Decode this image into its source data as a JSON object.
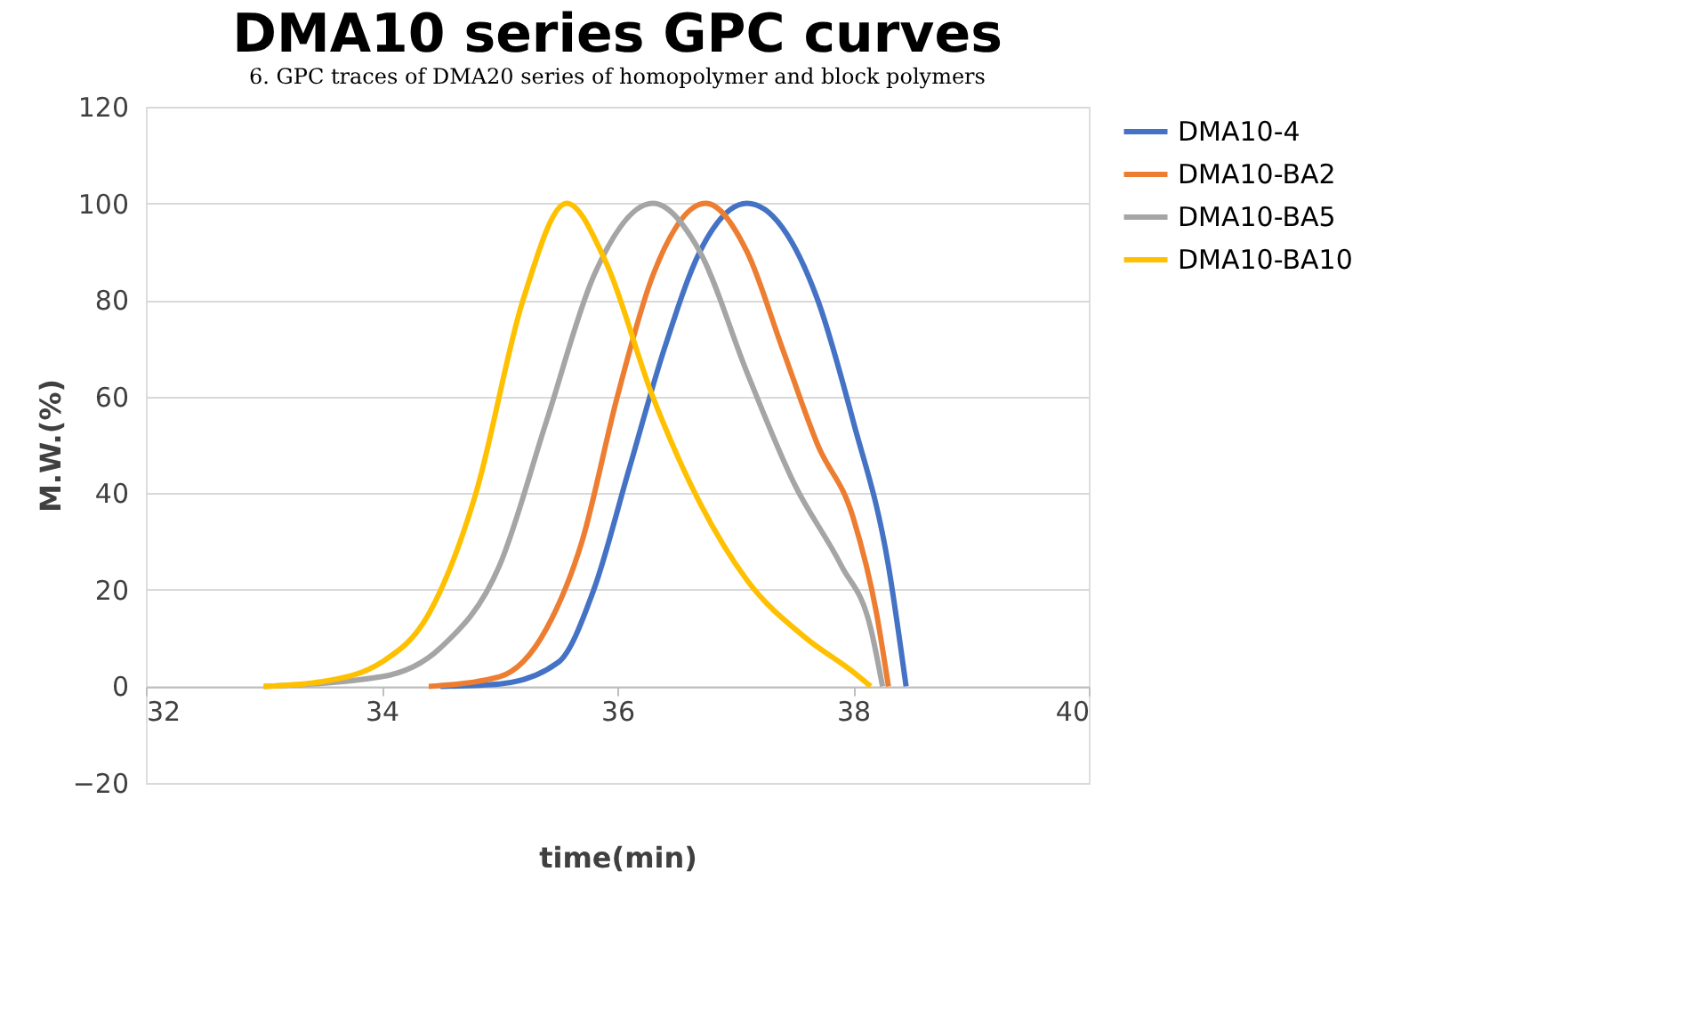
{
  "chart_data": {
    "type": "line",
    "title": "DMA10 series GPC curves",
    "xlabel": "time(min)",
    "ylabel": "M.W.(%)",
    "annotations": [
      "6. GPC traces of DMA20 series of homopolymer and block polymers"
    ],
    "xlim": [
      32,
      40
    ],
    "xticks": [
      32,
      34,
      36,
      38,
      40
    ],
    "ylim": [
      -20,
      120
    ],
    "yticks": [
      -20,
      0,
      20,
      40,
      60,
      80,
      100,
      120
    ],
    "grid": "y",
    "legend": "right",
    "marker": "none",
    "line_style": "solid",
    "series": [
      {
        "name": "DMA10-4",
        "color": "#4472c4",
        "x": [
          34.5,
          35,
          35.5,
          35.8,
          36.1,
          36.4,
          36.7,
          37.1,
          37.4,
          37.7,
          38.0,
          38.3,
          38.45
        ],
        "values": [
          0,
          0.5,
          5,
          20,
          45,
          70,
          90,
          100,
          95,
          80,
          55,
          25,
          0
        ]
      },
      {
        "name": "DMA10-BA2",
        "color": "#ed7d31",
        "x": [
          34.4,
          35,
          35.4,
          35.7,
          36.0,
          36.3,
          36.75,
          37.1,
          37.4,
          37.7,
          38.0,
          38.2,
          38.3
        ],
        "values": [
          0,
          2,
          12,
          30,
          60,
          85,
          100,
          90,
          70,
          50,
          35,
          15,
          0
        ]
      },
      {
        "name": "DMA10-BA5",
        "color": "#a5a5a5",
        "x": [
          33,
          34,
          34.5,
          35,
          35.4,
          35.8,
          36.3,
          36.7,
          37.1,
          37.5,
          37.9,
          38.15,
          38.25
        ],
        "values": [
          0,
          2,
          8,
          25,
          55,
          85,
          100,
          90,
          65,
          42,
          25,
          12,
          0
        ]
      },
      {
        "name": "DMA10-BA10",
        "color": "#ffc000",
        "x": [
          33,
          33.5,
          34,
          34.4,
          34.8,
          35.2,
          35.57,
          35.9,
          36.3,
          36.7,
          37.1,
          37.6,
          38.0,
          38.15
        ],
        "values": [
          0,
          1,
          5,
          15,
          40,
          80,
          100,
          88,
          60,
          38,
          22,
          10,
          3,
          0
        ]
      }
    ]
  }
}
